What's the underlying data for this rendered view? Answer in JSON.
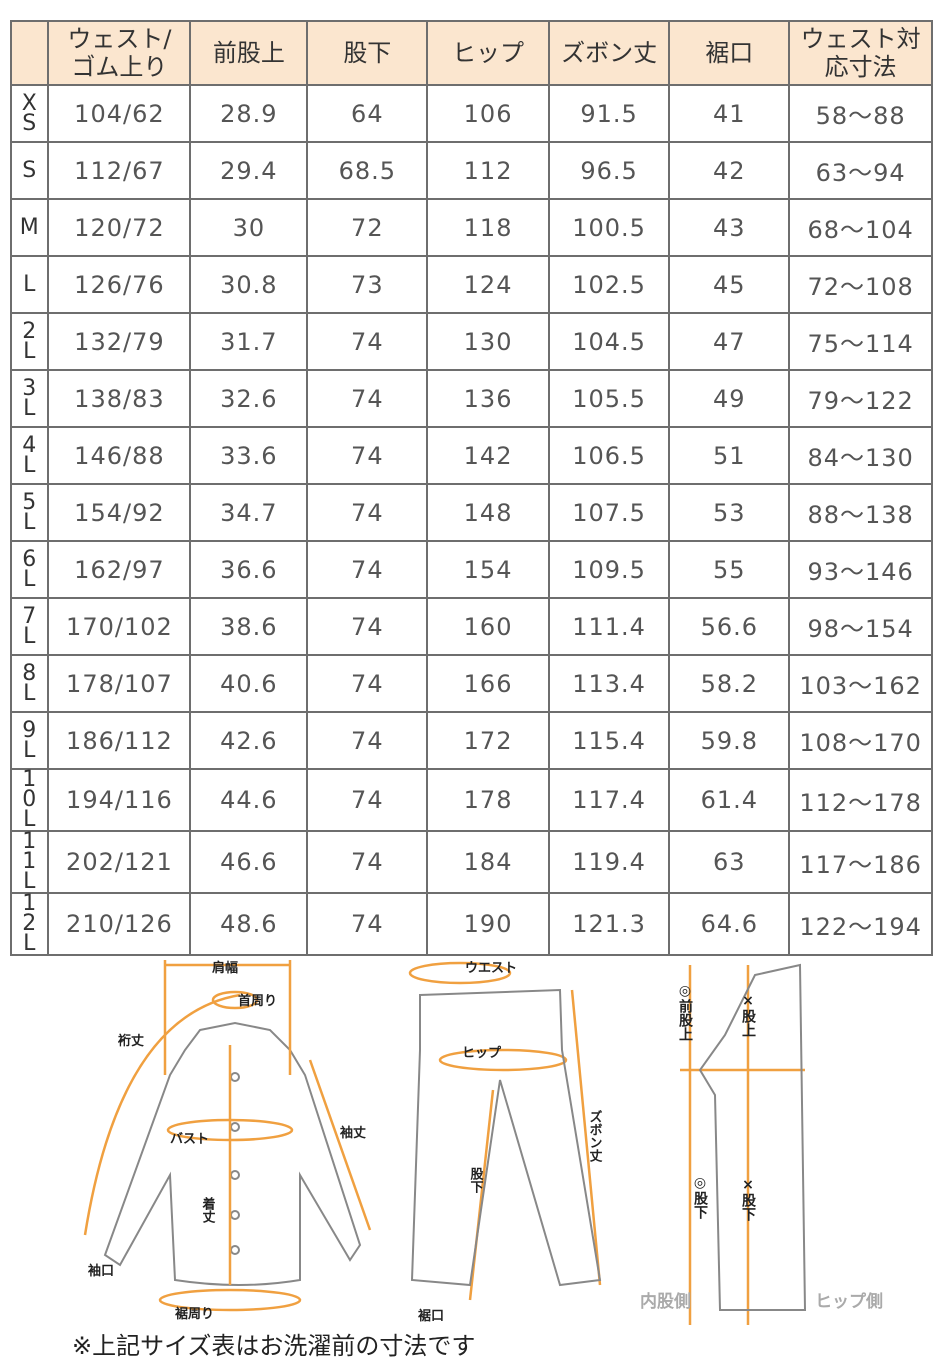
{
  "table": {
    "headers": [
      "",
      "ウェスト/ゴム上り",
      "前股上",
      "股下",
      "ヒップ",
      "ズボン丈",
      "裾口",
      "ウェスト対応寸法"
    ],
    "rows": [
      [
        "XS",
        "104/62",
        "28.9",
        "64",
        "106",
        "91.5",
        "41",
        "58〜88"
      ],
      [
        "S",
        "112/67",
        "29.4",
        "68.5",
        "112",
        "96.5",
        "42",
        "63〜94"
      ],
      [
        "M",
        "120/72",
        "30",
        "72",
        "118",
        "100.5",
        "43",
        "68〜104"
      ],
      [
        "L",
        "126/76",
        "30.8",
        "73",
        "124",
        "102.5",
        "45",
        "72〜108"
      ],
      [
        "2L",
        "132/79",
        "31.7",
        "74",
        "130",
        "104.5",
        "47",
        "75〜114"
      ],
      [
        "3L",
        "138/83",
        "32.6",
        "74",
        "136",
        "105.5",
        "49",
        "79〜122"
      ],
      [
        "4L",
        "146/88",
        "33.6",
        "74",
        "142",
        "106.5",
        "51",
        "84〜130"
      ],
      [
        "5L",
        "154/92",
        "34.7",
        "74",
        "148",
        "107.5",
        "53",
        "88〜138"
      ],
      [
        "6L",
        "162/97",
        "36.6",
        "74",
        "154",
        "109.5",
        "55",
        "93〜146"
      ],
      [
        "7L",
        "170/102",
        "38.6",
        "74",
        "160",
        "111.4",
        "56.6",
        "98〜154"
      ],
      [
        "8L",
        "178/107",
        "40.6",
        "74",
        "166",
        "113.4",
        "58.2",
        "103〜162"
      ],
      [
        "9L",
        "186/112",
        "42.6",
        "74",
        "172",
        "115.4",
        "59.8",
        "108〜170"
      ],
      [
        "10L",
        "194/116",
        "44.6",
        "74",
        "178",
        "117.4",
        "61.4",
        "112〜178"
      ],
      [
        "11L",
        "202/121",
        "46.6",
        "74",
        "184",
        "119.4",
        "63",
        "117〜186"
      ],
      [
        "12L",
        "210/126",
        "48.6",
        "74",
        "190",
        "121.3",
        "64.6",
        "122〜194"
      ]
    ]
  },
  "diagram": {
    "shirt": {
      "shoulder": "肩幅",
      "neck": "首周り",
      "yuki": "裄丈",
      "sleeve": "袖丈",
      "bust": "バスト",
      "length": "着丈",
      "cuff": "袖口",
      "hem": "裾周り"
    },
    "pants": {
      "waist": "ウエスト",
      "hip": "ヒップ",
      "inseam": "股下",
      "length": "ズボン丈",
      "hem": "裾口"
    },
    "side": {
      "front_rise": "◎前股上",
      "rise": "×股上",
      "inseam_o": "◎股下",
      "inseam_x": "×股下",
      "inner": "内股側",
      "hip_side": "ヒップ側"
    },
    "accent_color": "#f0a040"
  },
  "note": "※上記サイズ表はお洗濯前の寸法です"
}
